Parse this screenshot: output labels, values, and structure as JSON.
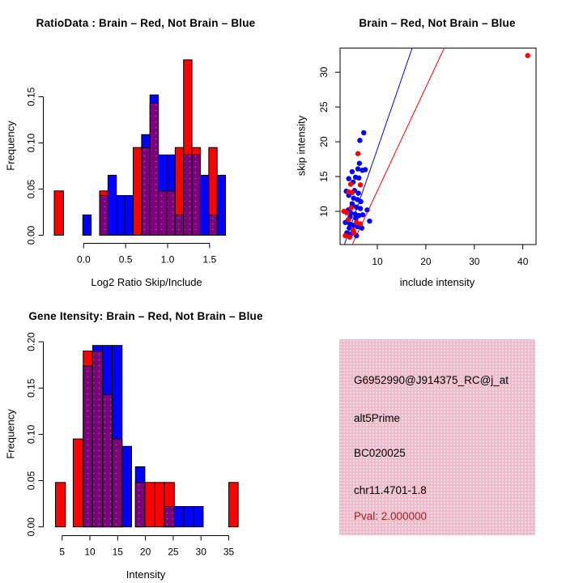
{
  "figure": {
    "background": "#FFFFFF",
    "colors": {
      "brain_red": "#FF0000",
      "not_brain_blue": "#0000FF",
      "overlap_purple": "#7D007D",
      "info_panel_pink": "#F6B8C6",
      "pval_text": "#A02020"
    }
  },
  "chart_data": [
    {
      "type": "histogram_overlay",
      "title": "RatioData : Brain – Red, Not Brain – Blue",
      "xlabel": "Log2 Ratio Skip/Include",
      "ylabel": "Frequency",
      "series": [
        {
          "name": "Brain",
          "color": "#FF0000"
        },
        {
          "name": "Not Brain",
          "color": "#0000FF"
        }
      ],
      "x_ticks": {
        "values": [
          0.0,
          0.5,
          1.0,
          1.5
        ],
        "labels": [
          "0.0",
          "0.5",
          "1.0",
          "1.5"
        ]
      },
      "y_ticks": {
        "values": [
          0,
          0.05,
          0.1,
          0.15
        ],
        "labels": [
          "0.00",
          "0.05",
          "0.10",
          "0.15"
        ]
      },
      "xlim": [
        -0.45,
        1.8
      ],
      "ylim": [
        0,
        0.2
      ],
      "bins": [
        {
          "x0": -0.35,
          "x1": -0.24,
          "red": 0.048,
          "blue": 0
        },
        {
          "x0": -0.01,
          "x1": 0.09,
          "red": 0,
          "blue": 0.022
        },
        {
          "x0": 0.19,
          "x1": 0.29,
          "red": 0.048,
          "blue": 0.043
        },
        {
          "x0": 0.29,
          "x1": 0.39,
          "red": 0,
          "blue": 0.065
        },
        {
          "x0": 0.39,
          "x1": 0.49,
          "red": 0,
          "blue": 0.043
        },
        {
          "x0": 0.49,
          "x1": 0.59,
          "red": 0,
          "blue": 0.043
        },
        {
          "x0": 0.59,
          "x1": 0.69,
          "red": 0.095,
          "blue": 0
        },
        {
          "x0": 0.69,
          "x1": 0.79,
          "red": 0.095,
          "blue": 0.109
        },
        {
          "x0": 0.79,
          "x1": 0.89,
          "red": 0.143,
          "blue": 0.152
        },
        {
          "x0": 0.89,
          "x1": 0.99,
          "red": 0.048,
          "blue": 0.087
        },
        {
          "x0": 0.99,
          "x1": 1.09,
          "red": 0.048,
          "blue": 0.087
        },
        {
          "x0": 1.09,
          "x1": 1.19,
          "red": 0.095,
          "blue": 0.022
        },
        {
          "x0": 1.19,
          "x1": 1.29,
          "red": 0.19,
          "blue": 0.087
        },
        {
          "x0": 1.29,
          "x1": 1.39,
          "red": 0.095,
          "blue": 0.087
        },
        {
          "x0": 1.39,
          "x1": 1.49,
          "red": 0,
          "blue": 0.065
        },
        {
          "x0": 1.49,
          "x1": 1.59,
          "red": 0.095,
          "blue": 0.022
        },
        {
          "x0": 1.59,
          "x1": 1.69,
          "red": 0,
          "blue": 0.065
        }
      ]
    },
    {
      "type": "scatter",
      "title": "Brain – Red, Not Brain – Blue",
      "xlabel": "include intensity",
      "ylabel": "skip intensity",
      "xlim": [
        2.3,
        42.7
      ],
      "ylim": [
        5.2,
        33.5
      ],
      "x_ticks": {
        "values": [
          10,
          20,
          30,
          40
        ],
        "labels": [
          "10",
          "20",
          "30",
          "40"
        ]
      },
      "y_ticks": {
        "values": [
          10,
          15,
          20,
          25,
          30
        ],
        "labels": [
          "10",
          "15",
          "20",
          "25",
          "30"
        ]
      },
      "red_points": [
        [
          41.0,
          32.4
        ],
        [
          6.0,
          18.3
        ],
        [
          4.5,
          13.9
        ],
        [
          6.5,
          13.8
        ],
        [
          4.1,
          12.8
        ],
        [
          4.8,
          12.7
        ],
        [
          3.1,
          10.0
        ],
        [
          3.7,
          9.8
        ],
        [
          4.6,
          10.5
        ],
        [
          5.7,
          8.4
        ],
        [
          6.5,
          8.2
        ],
        [
          4.0,
          8.8
        ],
        [
          5.0,
          7.3
        ],
        [
          5.2,
          6.9
        ],
        [
          3.4,
          6.5
        ],
        [
          4.3,
          6.3
        ]
      ],
      "blue_points": [
        [
          7.2,
          21.3
        ],
        [
          6.4,
          20.2
        ],
        [
          6.3,
          16.9
        ],
        [
          6.0,
          16.1
        ],
        [
          6.9,
          15.9
        ],
        [
          7.5,
          16.0
        ],
        [
          4.8,
          15.7
        ],
        [
          4.1,
          14.7
        ],
        [
          5.5,
          14.9
        ],
        [
          6.2,
          14.8
        ],
        [
          5.0,
          14.2
        ],
        [
          3.6,
          12.9
        ],
        [
          5.3,
          13.0
        ],
        [
          6.1,
          12.6
        ],
        [
          4.1,
          12.3
        ],
        [
          5.1,
          11.9
        ],
        [
          5.9,
          11.7
        ],
        [
          6.6,
          11.4
        ],
        [
          4.8,
          11.1
        ],
        [
          4.9,
          10.9
        ],
        [
          5.7,
          10.6
        ],
        [
          6.5,
          10.4
        ],
        [
          4.0,
          10.2
        ],
        [
          7.9,
          10.2
        ],
        [
          4.5,
          9.8
        ],
        [
          5.4,
          9.6
        ],
        [
          6.2,
          9.4
        ],
        [
          7.0,
          9.5
        ],
        [
          4.4,
          9.2
        ],
        [
          5.6,
          9.0
        ],
        [
          8.4,
          8.6
        ],
        [
          3.4,
          8.4
        ],
        [
          4.3,
          8.2
        ],
        [
          5.1,
          8.0
        ],
        [
          5.9,
          7.8
        ],
        [
          6.8,
          7.6
        ],
        [
          4.2,
          7.6
        ],
        [
          3.7,
          6.9
        ],
        [
          4.5,
          6.7
        ],
        [
          5.7,
          6.5
        ]
      ],
      "lines": [
        {
          "color": "#0000FF",
          "x1": 3.2,
          "y1": 5.2,
          "x2": 17.2,
          "y2": 33.5
        },
        {
          "color": "#FF0000",
          "x1": 4.8,
          "y1": 5.2,
          "x2": 23.8,
          "y2": 33.5
        }
      ]
    },
    {
      "type": "histogram_overlay",
      "title": "Gene Itensity: Brain – Red, Not Brain – Blue",
      "xlabel": "Intensity",
      "ylabel": "Frequency",
      "series": [
        {
          "name": "Brain",
          "color": "#FF0000"
        },
        {
          "name": "Not Brain",
          "color": "#0000FF"
        }
      ],
      "x_ticks": {
        "values": [
          5,
          10,
          15,
          20,
          25,
          30,
          35
        ],
        "labels": [
          "5",
          "10",
          "15",
          "20",
          "25",
          "30",
          "35"
        ]
      },
      "y_ticks": {
        "values": [
          0,
          0.05,
          0.1,
          0.15,
          0.2
        ],
        "labels": [
          "0.00",
          "0.05",
          "0.10",
          "0.15",
          "0.20"
        ]
      },
      "xlim": [
        3,
        38
      ],
      "ylim": [
        0,
        0.2
      ],
      "bins": [
        {
          "x0": 3.8,
          "x1": 5.6,
          "red": 0.048,
          "blue": 0
        },
        {
          "x0": 7.0,
          "x1": 8.8,
          "red": 0.095,
          "blue": 0
        },
        {
          "x0": 8.8,
          "x1": 10.5,
          "red": 0.19,
          "blue": 0.174
        },
        {
          "x0": 10.5,
          "x1": 12.3,
          "red": 0.19,
          "blue": 0.196
        },
        {
          "x0": 12.3,
          "x1": 14.0,
          "red": 0.143,
          "blue": 0.196
        },
        {
          "x0": 14.0,
          "x1": 15.8,
          "red": 0.095,
          "blue": 0.196
        },
        {
          "x0": 15.8,
          "x1": 17.5,
          "red": 0,
          "blue": 0.087
        },
        {
          "x0": 18.2,
          "x1": 19.9,
          "red": 0.048,
          "blue": 0.065
        },
        {
          "x0": 19.9,
          "x1": 21.7,
          "red": 0.048,
          "blue": 0
        },
        {
          "x0": 21.7,
          "x1": 23.4,
          "red": 0.048,
          "blue": 0
        },
        {
          "x0": 23.4,
          "x1": 25.2,
          "red": 0.048,
          "blue": 0.022
        },
        {
          "x0": 25.2,
          "x1": 26.9,
          "red": 0,
          "blue": 0.022
        },
        {
          "x0": 26.9,
          "x1": 28.7,
          "red": 0,
          "blue": 0.022
        },
        {
          "x0": 28.7,
          "x1": 30.4,
          "red": 0,
          "blue": 0.022
        },
        {
          "x0": 35.0,
          "x1": 36.7,
          "red": 0.048,
          "blue": 0
        }
      ]
    }
  ],
  "info_panel": {
    "background": "#F6B8C6",
    "lines": [
      {
        "text": "G6952990@J914375_RC@j_at"
      },
      {
        "text": "alt5Prime"
      },
      {
        "text": "BC020025"
      },
      {
        "text": "chr11.4701-1.8"
      },
      {
        "text": "Pval: 2.000000"
      }
    ]
  }
}
